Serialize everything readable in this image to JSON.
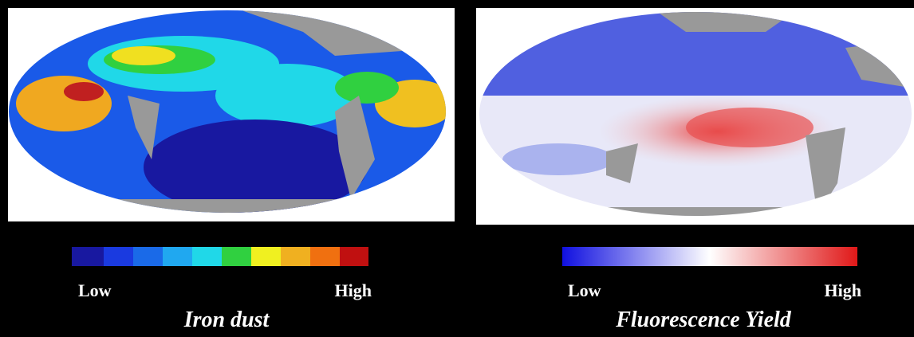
{
  "panels": [
    {
      "low": "Low",
      "high": "High",
      "title": "Iron dust"
    },
    {
      "low": "Low",
      "high": "High",
      "title": "Fluorescence Yield"
    }
  ]
}
